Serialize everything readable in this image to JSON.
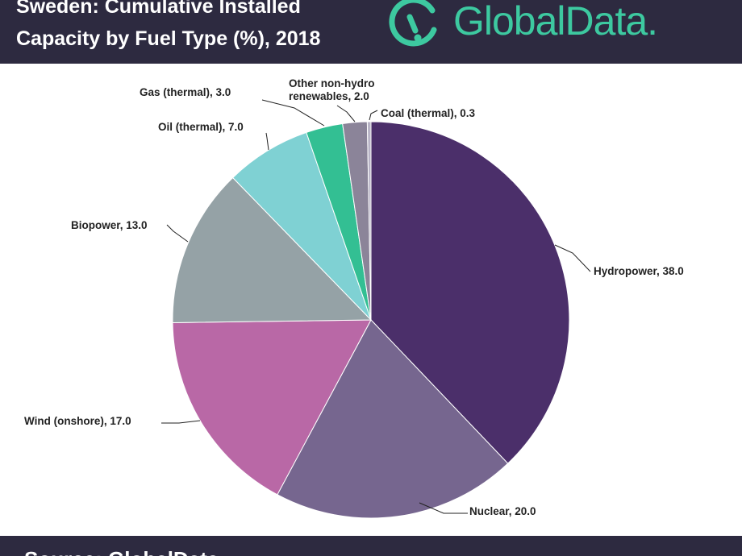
{
  "header": {
    "title_line1": "Sweden: Cumulative Installed",
    "title_line2": "Capacity by Fuel Type (%), 2018",
    "logo_text": "GlobalData."
  },
  "colors": {
    "header_bg": "#2d2a40",
    "logo": "#3dc9a0"
  },
  "chart_data": {
    "type": "pie",
    "title": "Sweden: Cumulative Installed Capacity by Fuel Type (%), 2018",
    "unit": "%",
    "slices": [
      {
        "name": "Hydropower",
        "value": 38.0,
        "label": "Hydropower, 38.0",
        "color": "#4b2f6a"
      },
      {
        "name": "Nuclear",
        "value": 20.0,
        "label": "Nuclear, 20.0",
        "color": "#76668f"
      },
      {
        "name": "Wind (onshore)",
        "value": 17.0,
        "label": "Wind (onshore), 17.0",
        "color": "#b968a6"
      },
      {
        "name": "Biopower",
        "value": 13.0,
        "label": "Biopower, 13.0",
        "color": "#95a2a6"
      },
      {
        "name": "Oil (thermal)",
        "value": 7.0,
        "label": "Oil (thermal), 7.0",
        "color": "#7fd1d3"
      },
      {
        "name": "Gas (thermal)",
        "value": 3.0,
        "label": "Gas (thermal), 3.0",
        "color": "#33bf93"
      },
      {
        "name": "Other non-hydro renewables",
        "value": 2.0,
        "label_lines": [
          "Other non-hydro",
          "renewables, 2.0"
        ],
        "color": "#8b8499"
      },
      {
        "name": "Coal (thermal)",
        "value": 0.3,
        "label": "Coal (thermal), 0.3",
        "color": "#b8b4c6"
      }
    ]
  },
  "footer": {
    "source_text": "Source: GlobalData"
  }
}
